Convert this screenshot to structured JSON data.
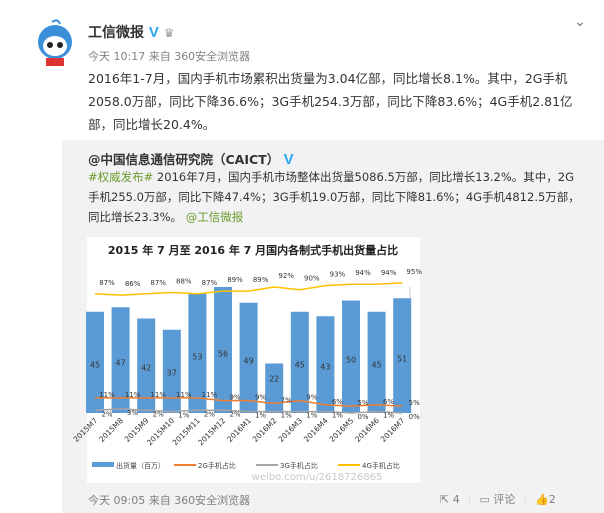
{
  "post": {
    "username": "工信微报",
    "verified_icon": "V",
    "meta": "今天 10:17 来自 360安全浏览器",
    "text": "2016年1-7月，国内手机市场累积出货量为3.04亿部，同比增长8.1%。其中，2G手机2058.0万部，同比下降36.6%；3G手机254.3万部，同比下降83.6%；4G手机2.81亿部，同比增长20.4%。"
  },
  "repost": {
    "author": "@中国信息通信研究院（CAICT）",
    "hashtag": "#权威发布#",
    "text": " 2016年7月，国内手机市场整体出货量5086.5万部，同比增长13.2%。其中，2G手机255.0万部，同比下降47.4%；3G手机19.0万部，同比下降81.6%；4G手机4812.5万部，同比增长23.3%。",
    "mention": "@工信微报",
    "meta": "今天 09:05 来自 360安全浏览器",
    "share_count": "4",
    "comment_label": "评论",
    "like_count": "2",
    "watermark": "weibo.com/u/2618726865"
  },
  "chart_data": {
    "type": "bar",
    "title": "2015 年 7 月至 2016 年 7 月国内各制式手机出货量占比",
    "categories": [
      "2015M7",
      "2015M8",
      "2015M9",
      "2015M10",
      "2015M11",
      "2015M12",
      "2016M1",
      "2016M2",
      "2016M3",
      "2016M4",
      "2016M5",
      "2016M6",
      "2016M7"
    ],
    "series": [
      {
        "name": "出货量（百万）",
        "type": "bar",
        "color": "#5b9bd5",
        "values": [
          45,
          47,
          42,
          37,
          53,
          56,
          49,
          22,
          45,
          43,
          50,
          45,
          51
        ]
      },
      {
        "name": "2G手机占比",
        "type": "line",
        "color": "#ed7d31",
        "values": [
          11,
          11,
          11,
          11,
          11,
          9,
          9,
          7,
          9,
          6,
          5,
          6,
          5
        ]
      },
      {
        "name": "3G手机占比",
        "type": "line",
        "color": "#a5a5a5",
        "values": [
          2,
          3,
          2,
          1,
          2,
          2,
          1,
          1,
          1,
          1,
          0,
          1,
          0
        ]
      },
      {
        "name": "4G手机占比",
        "type": "line",
        "color": "#ffc000",
        "values": [
          87,
          86,
          87,
          88,
          87,
          89,
          89,
          92,
          90,
          93,
          94,
          94,
          95
        ]
      }
    ],
    "legend_position": "bottom"
  },
  "colors": {
    "link_green": "#6a9b2a",
    "verified_blue": "#2aa7f2"
  }
}
